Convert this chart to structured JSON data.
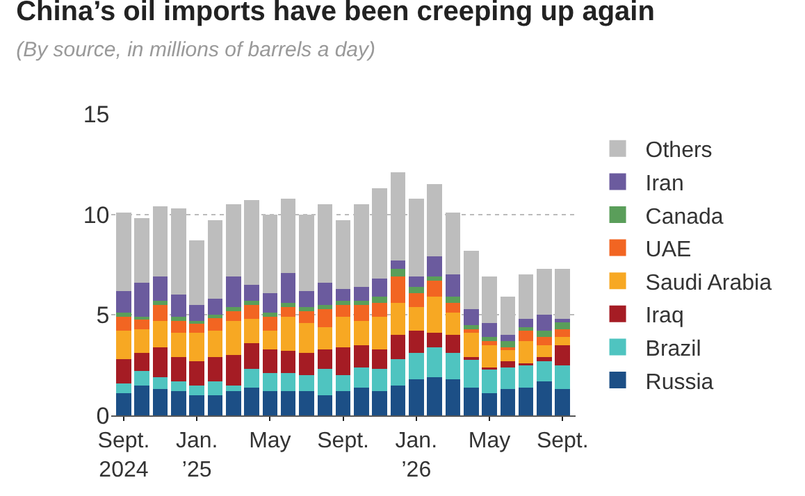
{
  "chart_data": {
    "type": "bar",
    "stacked": true,
    "title": "China’s oil imports have been creeping up again",
    "subtitle": "(By source, in millions of barrels a day)",
    "categories": [
      "Sept.\n2024",
      null,
      null,
      null,
      "Jan.\n’25",
      null,
      null,
      null,
      "May",
      null,
      null,
      null,
      "Sept.",
      null,
      null,
      null,
      "Jan.\n’26",
      null,
      null,
      null,
      "May",
      null,
      null,
      null,
      "Sept."
    ],
    "series": [
      {
        "name": "Russia",
        "color": "#1c4f86",
        "values": [
          1.1,
          1.5,
          1.3,
          1.2,
          1.0,
          1.0,
          1.2,
          1.4,
          1.2,
          1.2,
          1.2,
          1.0,
          1.2,
          1.4,
          1.2,
          1.5,
          1.8,
          1.9,
          1.8,
          1.4,
          1.1,
          1.3,
          1.4,
          1.7,
          1.3
        ]
      },
      {
        "name": "Brazil",
        "color": "#4fc4c0",
        "values": [
          0.5,
          0.7,
          0.6,
          0.5,
          0.5,
          0.7,
          0.3,
          0.9,
          0.9,
          0.9,
          0.8,
          1.3,
          0.8,
          1.0,
          1.1,
          1.3,
          1.3,
          1.5,
          1.3,
          1.4,
          1.2,
          1.1,
          1.1,
          1.0,
          1.2
        ]
      },
      {
        "name": "Iraq",
        "color": "#a51c24",
        "values": [
          1.2,
          0.9,
          1.5,
          1.2,
          1.2,
          1.2,
          1.5,
          1.3,
          1.2,
          1.1,
          1.1,
          1.0,
          1.4,
          1.1,
          1.0,
          1.2,
          1.1,
          0.7,
          0.9,
          0.1,
          0.1,
          0.3,
          0.1,
          0.2,
          1.0
        ]
      },
      {
        "name": "Saudi Arabia",
        "color": "#f7a823",
        "values": [
          1.4,
          1.2,
          1.3,
          1.2,
          1.4,
          1.3,
          1.7,
          1.2,
          0.9,
          1.7,
          1.5,
          1.1,
          1.5,
          1.2,
          1.6,
          1.6,
          1.2,
          1.8,
          1.1,
          1.2,
          1.1,
          0.6,
          1.1,
          0.6,
          0.4
        ]
      },
      {
        "name": "UAE",
        "color": "#f26522",
        "values": [
          0.7,
          0.5,
          0.8,
          0.6,
          0.5,
          0.7,
          0.5,
          0.7,
          0.7,
          0.5,
          0.6,
          0.9,
          0.6,
          0.8,
          0.7,
          1.3,
          0.7,
          0.8,
          0.5,
          0.2,
          0.2,
          0.1,
          0.5,
          0.4,
          0.4
        ]
      },
      {
        "name": "Canada",
        "color": "#5a9e5a",
        "values": [
          0.2,
          0.1,
          0.2,
          0.2,
          0.1,
          0.1,
          0.2,
          0.2,
          0.2,
          0.2,
          0.2,
          0.2,
          0.2,
          0.2,
          0.3,
          0.4,
          0.3,
          0.2,
          0.3,
          0.2,
          0.2,
          0.3,
          0.2,
          0.3,
          0.4
        ]
      },
      {
        "name": "Iran",
        "color": "#6b5b9e",
        "values": [
          1.1,
          1.7,
          1.2,
          1.1,
          0.8,
          0.8,
          1.5,
          0.8,
          1.0,
          1.5,
          0.8,
          1.1,
          0.6,
          0.7,
          0.9,
          0.4,
          0.5,
          1.0,
          1.1,
          0.8,
          0.7,
          0.3,
          0.4,
          0.8,
          0.1
        ]
      },
      {
        "name": "Others",
        "color": "#bdbdbd",
        "values": [
          3.9,
          3.2,
          3.5,
          4.3,
          3.2,
          3.9,
          3.6,
          4.2,
          3.9,
          3.7,
          3.8,
          3.9,
          3.4,
          4.1,
          4.5,
          4.4,
          3.9,
          3.6,
          3.1,
          2.9,
          2.3,
          1.9,
          2.2,
          2.3,
          2.5
        ]
      }
    ],
    "ylim": [
      0,
      15
    ],
    "yticks": [
      0,
      5,
      10,
      15
    ],
    "grid": "y",
    "legend": "right"
  }
}
